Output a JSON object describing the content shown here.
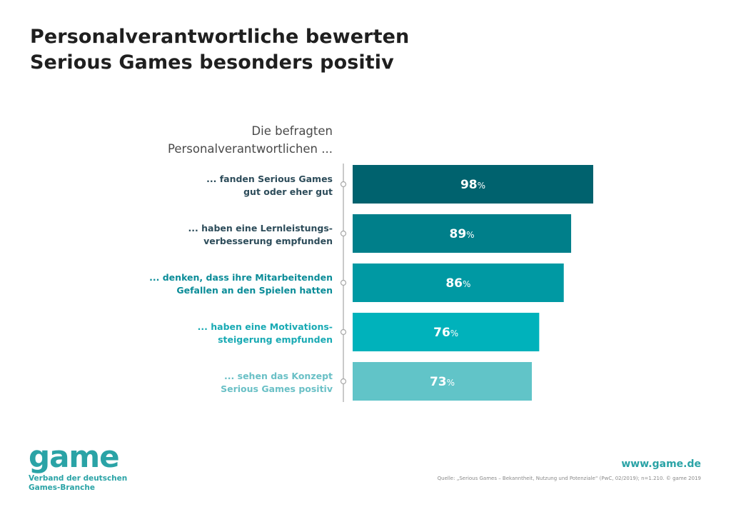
{
  "title": {
    "line1": "Personalverantwortliche bewerten",
    "line2": "Serious Games besonders positiv"
  },
  "chart_data": {
    "type": "bar",
    "orientation": "horizontal",
    "header_lines": [
      "Die befragten",
      "Personalverantwortlichen ..."
    ],
    "categories": [
      [
        "... fanden Serious Games",
        "gut oder eher gut"
      ],
      [
        "... haben eine Lernleistungs-",
        "verbesserung empfunden"
      ],
      [
        "... denken, dass ihre Mitarbeitenden",
        "Gefallen an den Spielen hatten"
      ],
      [
        "... haben eine Motivations-",
        "steigerung empfunden"
      ],
      [
        "... sehen das Konzept",
        "Serious Games positiv"
      ]
    ],
    "values": [
      98,
      89,
      86,
      76,
      73
    ],
    "unit": "%",
    "xlim": [
      0,
      100
    ],
    "grid": false,
    "legend": "none",
    "colors": [
      "#00626e",
      "#007f8a",
      "#0099a3",
      "#00b2bb",
      "#61c4c8"
    ],
    "label_colors": [
      "#2d4c5a",
      "#2d4c5a",
      "#0a8c98",
      "#19aab4",
      "#6ac0c6"
    ]
  },
  "footer": {
    "logo_word": "game",
    "logo_line1": "Verband der deutschen",
    "logo_line2": "Games-Branche",
    "website": "www.game.de",
    "source": "Quelle: „Serious Games – Bekanntheit, Nutzung und Potenziale“ (PwC, 02/2019); n=1.210. © game 2019"
  }
}
